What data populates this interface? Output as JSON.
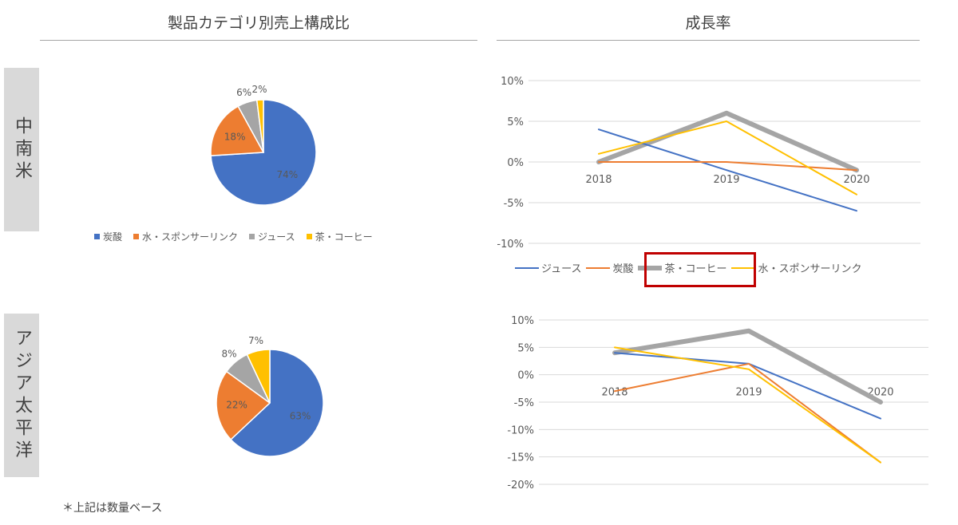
{
  "headers": {
    "left_title": "製品カテゴリ別売上構成比",
    "right_title": "成長率"
  },
  "regions": [
    {
      "label": "中南米"
    },
    {
      "label": "アジア太平洋"
    }
  ],
  "footnote": "＊上記は数量ベース",
  "colors": {
    "carbonated": "#4472c4",
    "water_sports": "#ed7d31",
    "juice": "#a5a5a5",
    "tea_coffee": "#ffc000",
    "highlight_box": "#c00000"
  },
  "pie_legend": [
    "炭酸",
    "水・スポンサーリンク",
    "ジュース",
    "茶・コーヒー"
  ],
  "line_legend": [
    "ジュース",
    "炭酸",
    "茶・コーヒー",
    "水・スポンサーリンク"
  ],
  "chart_data": [
    {
      "type": "pie",
      "region": "中南米",
      "categories": [
        "炭酸",
        "水・スポンサーリンク",
        "ジュース",
        "茶・コーヒー"
      ],
      "values": [
        74,
        18,
        6,
        2
      ],
      "labels": [
        "74%",
        "18%",
        "6%",
        "2%"
      ]
    },
    {
      "type": "line",
      "region": "中南米",
      "x": [
        "2018",
        "2019",
        "2020"
      ],
      "series": [
        {
          "name": "ジュース",
          "values": [
            4,
            -1,
            -6
          ]
        },
        {
          "name": "炭酸",
          "values": [
            0,
            0,
            -1
          ]
        },
        {
          "name": "茶・コーヒー",
          "values": [
            0,
            6,
            -1
          ]
        },
        {
          "name": "水・スポンサーリンク",
          "values": [
            1,
            5,
            -4
          ]
        }
      ],
      "ylim": [
        -10,
        10
      ],
      "yticks": [
        10,
        5,
        0,
        -5,
        -10
      ],
      "ytick_labels": [
        "10%",
        "5%",
        "0%",
        "-5%",
        "-10%"
      ],
      "highlighted_series": "茶・コーヒー",
      "legend": "bottom"
    },
    {
      "type": "pie",
      "region": "アジア太平洋",
      "categories": [
        "炭酸",
        "水・スポンサーリンク",
        "ジュース",
        "茶・コーヒー"
      ],
      "values": [
        63,
        22,
        8,
        7
      ],
      "labels": [
        "63%",
        "22%",
        "8%",
        "7%"
      ]
    },
    {
      "type": "line",
      "region": "アジア太平洋",
      "x": [
        "2018",
        "2019",
        "2020"
      ],
      "series": [
        {
          "name": "ジュース",
          "values": [
            4,
            2,
            -8
          ]
        },
        {
          "name": "炭酸",
          "values": [
            -3,
            2,
            -16
          ]
        },
        {
          "name": "茶・コーヒー",
          "values": [
            4,
            8,
            -5
          ]
        },
        {
          "name": "水・スポンサーリンク",
          "values": [
            5,
            1,
            -16
          ]
        }
      ],
      "ylim": [
        -20,
        10
      ],
      "yticks": [
        10,
        5,
        0,
        -5,
        -10,
        -15,
        -20
      ],
      "ytick_labels": [
        "10%",
        "5%",
        "0%",
        "-5%",
        "-10%",
        "-15%",
        "-20%"
      ],
      "highlighted_series": "茶・コーヒー"
    }
  ]
}
